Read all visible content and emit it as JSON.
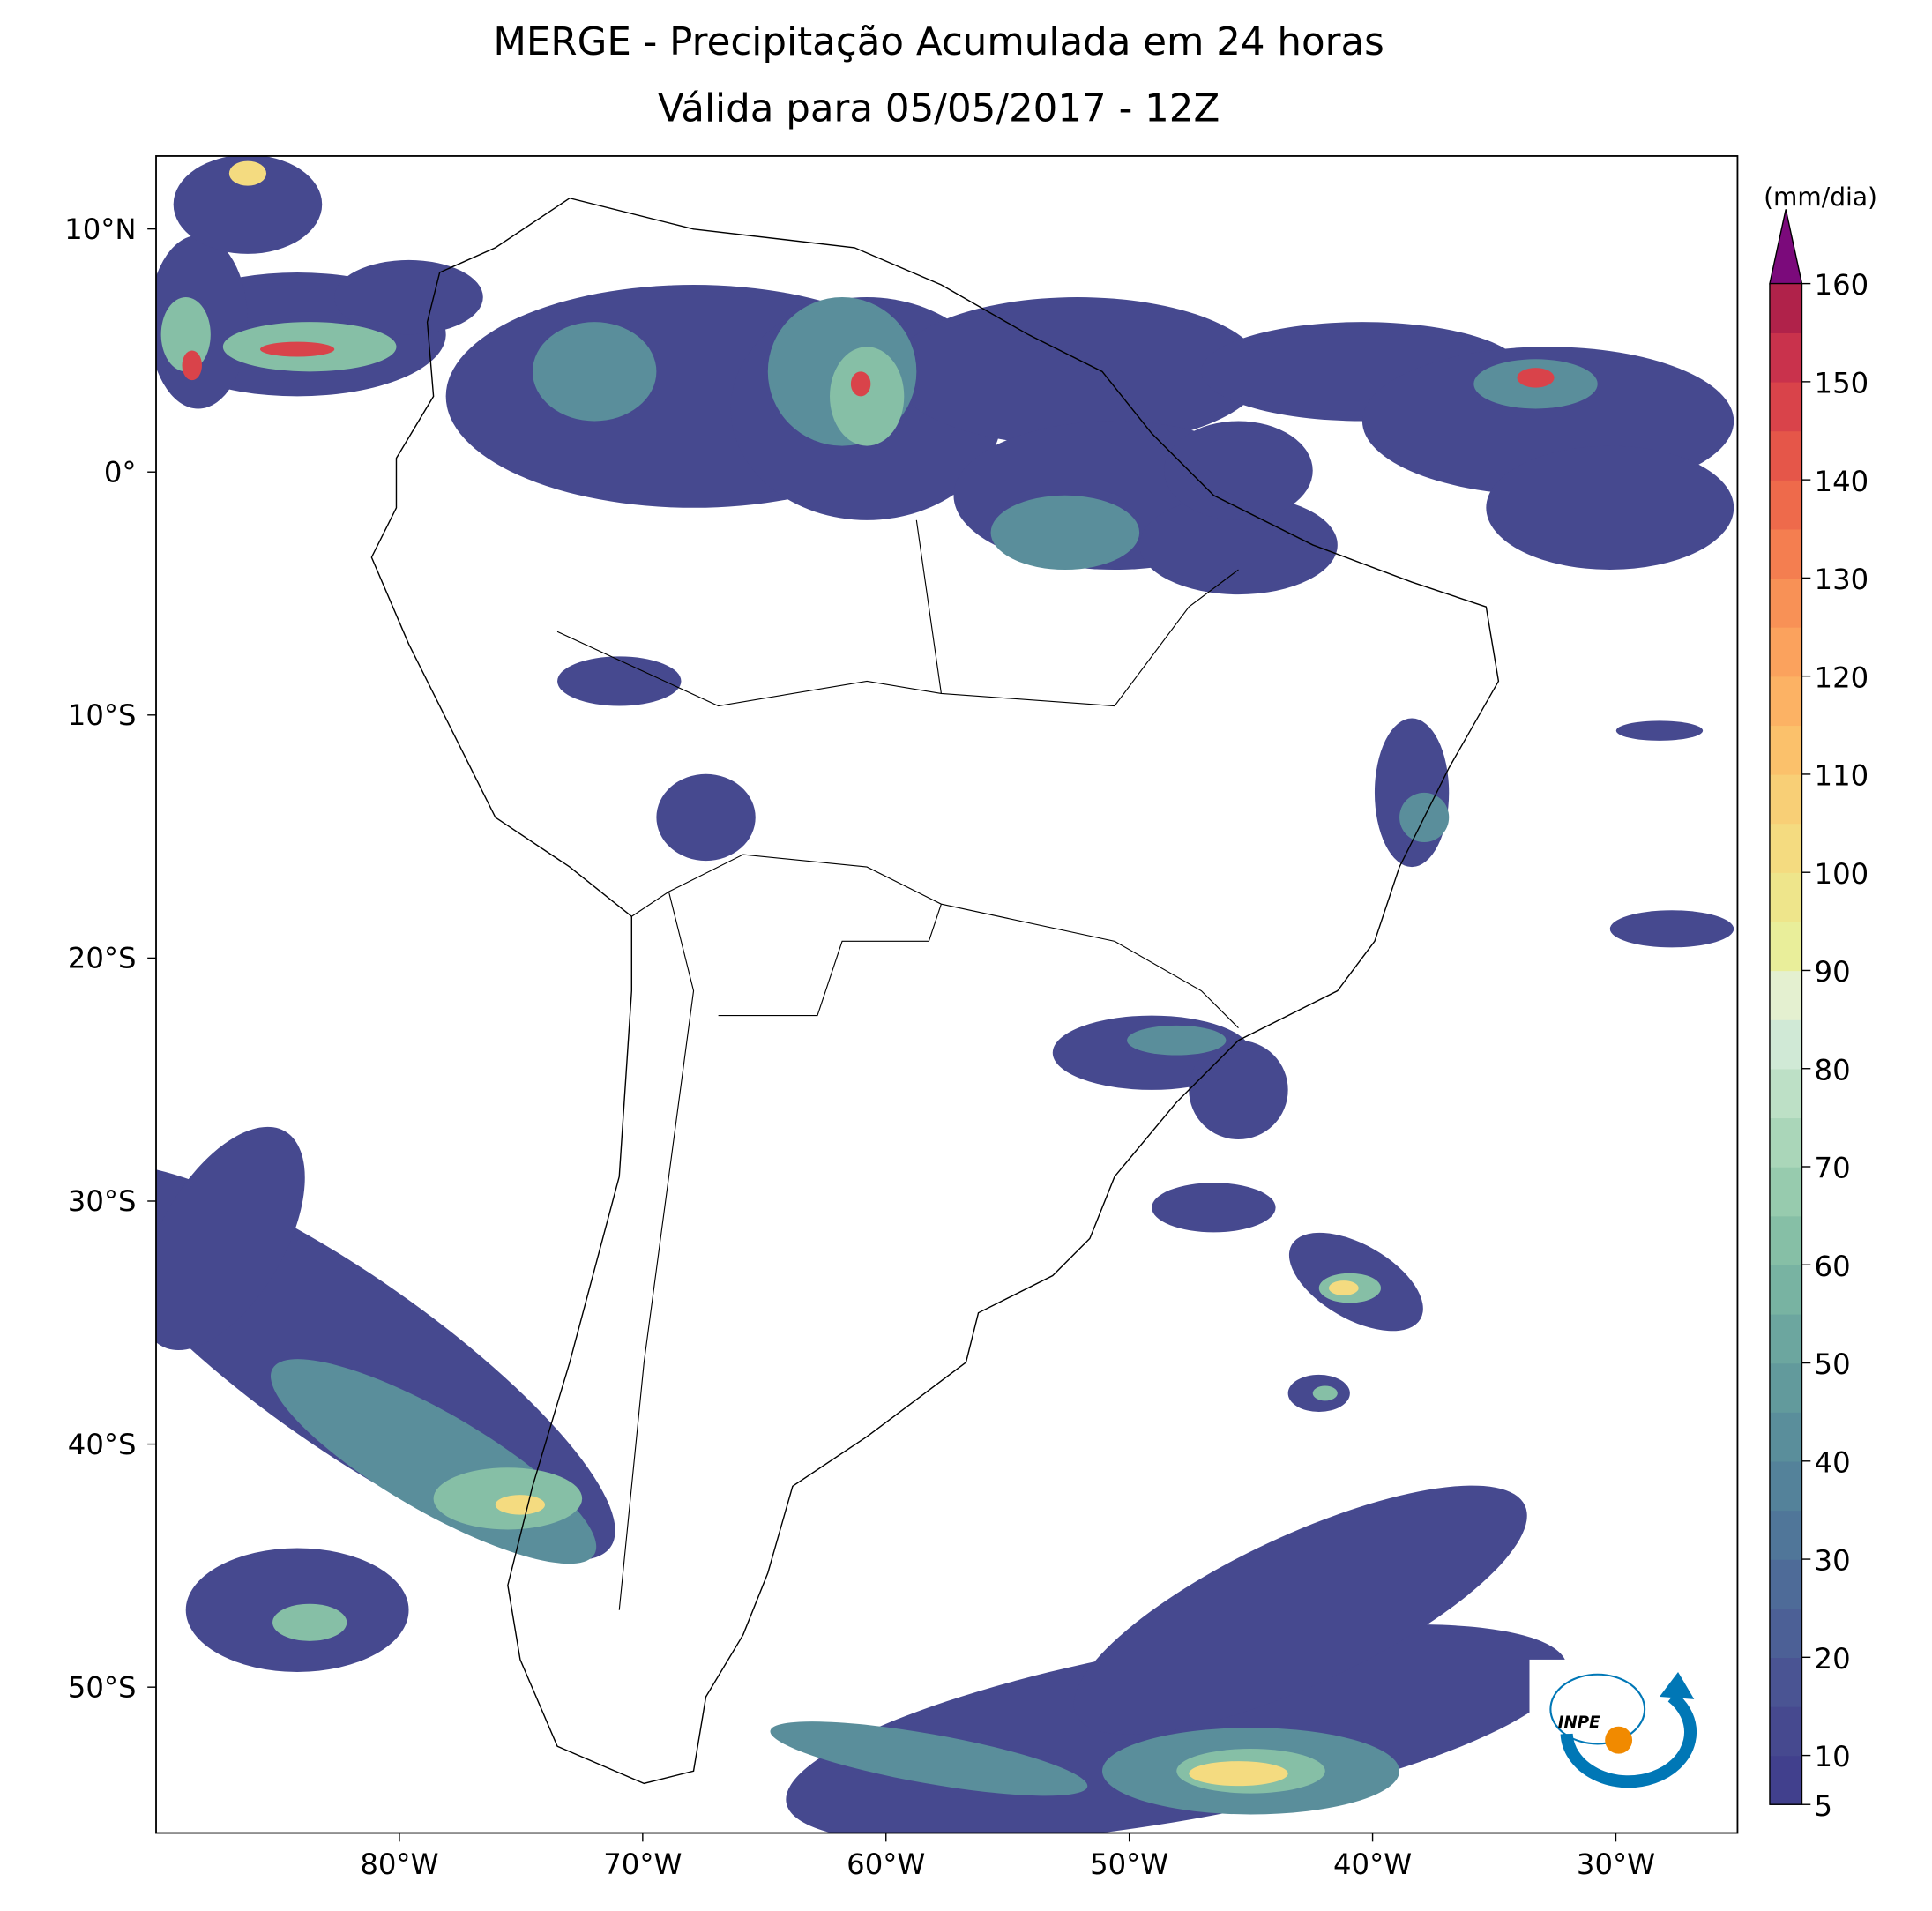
{
  "chart_data": {
    "type": "map",
    "title": "MERGE - Precipitação Acumulada em 24 horas",
    "subtitle": "Válida para 05/05/2017 - 12Z",
    "xlim": [
      -90,
      -25
    ],
    "ylim": [
      -56,
      13
    ],
    "xticks": [
      {
        "value": -80,
        "label": "80°W"
      },
      {
        "value": -70,
        "label": "70°W"
      },
      {
        "value": -60,
        "label": "60°W"
      },
      {
        "value": -50,
        "label": "50°W"
      },
      {
        "value": -40,
        "label": "40°W"
      },
      {
        "value": -30,
        "label": "30°W"
      }
    ],
    "yticks": [
      {
        "value": 10,
        "label": "10°N"
      },
      {
        "value": 0,
        "label": "0°"
      },
      {
        "value": -10,
        "label": "10°S"
      },
      {
        "value": -20,
        "label": "20°S"
      },
      {
        "value": -30,
        "label": "30°S"
      },
      {
        "value": -40,
        "label": "40°S"
      },
      {
        "value": -50,
        "label": "50°S"
      }
    ],
    "colorbar": {
      "label": "(mm/dia)",
      "lim": [
        5,
        160
      ],
      "ticks": [
        5,
        10,
        20,
        30,
        40,
        50,
        60,
        70,
        80,
        90,
        100,
        110,
        120,
        130,
        140,
        150,
        160
      ],
      "colors": [
        "#41408d",
        "#46498f",
        "#4a5493",
        "#4c6096",
        "#4e6b98",
        "#507699",
        "#54829a",
        "#5a8e9b",
        "#629a9c",
        "#6ca69f",
        "#78b3a2",
        "#86bfa6",
        "#97cbae",
        "#aad6b9",
        "#bde0c6",
        "#d0e9d6",
        "#e4f0d0",
        "#e9ee9a",
        "#eee58b",
        "#f4db80",
        "#f8cf76",
        "#fbc16b",
        "#fcb264",
        "#fba25d",
        "#f89156",
        "#f47e50",
        "#ee6a4b",
        "#e55649",
        "#d9434a",
        "#c9324c",
        "#b0224a"
      ],
      "extend_color": "#7b0a7b"
    },
    "logo": "INPE"
  }
}
